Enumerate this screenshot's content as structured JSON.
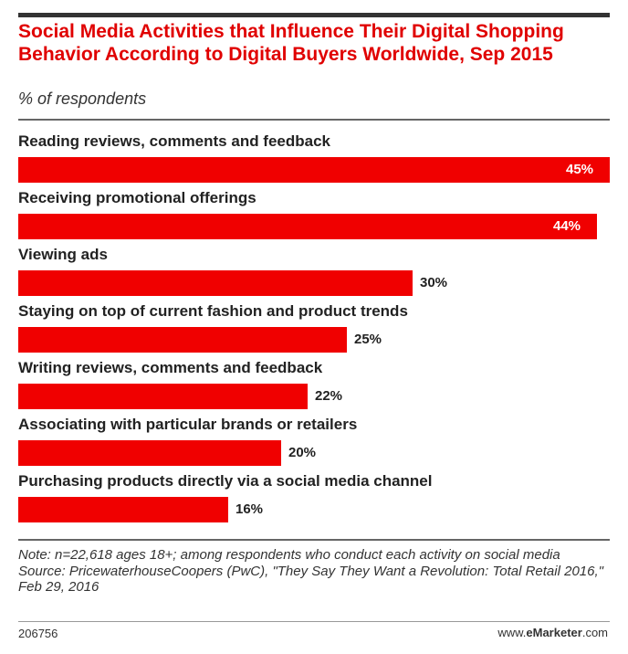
{
  "chart_data": {
    "type": "bar",
    "orientation": "horizontal",
    "title": "Social Media Activities that Influence Their Digital Shopping Behavior According to Digital Buyers Worldwide, Sep 2015",
    "subtitle": "% of respondents",
    "categories": [
      "Reading reviews, comments and feedback",
      "Receiving promotional offerings",
      "Viewing ads",
      "Staying on top of current fashion and product trends",
      "Writing reviews, comments and feedback",
      "Associating with particular brands or retailers",
      "Purchasing products directly via a social media channel"
    ],
    "values": [
      45,
      44,
      30,
      25,
      22,
      20,
      16
    ],
    "value_labels": [
      "45%",
      "44%",
      "30%",
      "25%",
      "22%",
      "20%",
      "16%"
    ],
    "bar_color": "#f00000",
    "xlim": [
      0,
      45
    ],
    "grid": false
  },
  "footer": {
    "note": "Note: n=22,618 ages 18+; among respondents who conduct each activity on social media",
    "source": "Source: PricewaterhouseCoopers (PwC), \"They Say They Want a Revolution: Total Retail 2016,\" Feb 29, 2016",
    "chart_id": "206756",
    "brand_prefix": "www.",
    "brand_name": "eMarketer",
    "brand_suffix": ".com"
  }
}
